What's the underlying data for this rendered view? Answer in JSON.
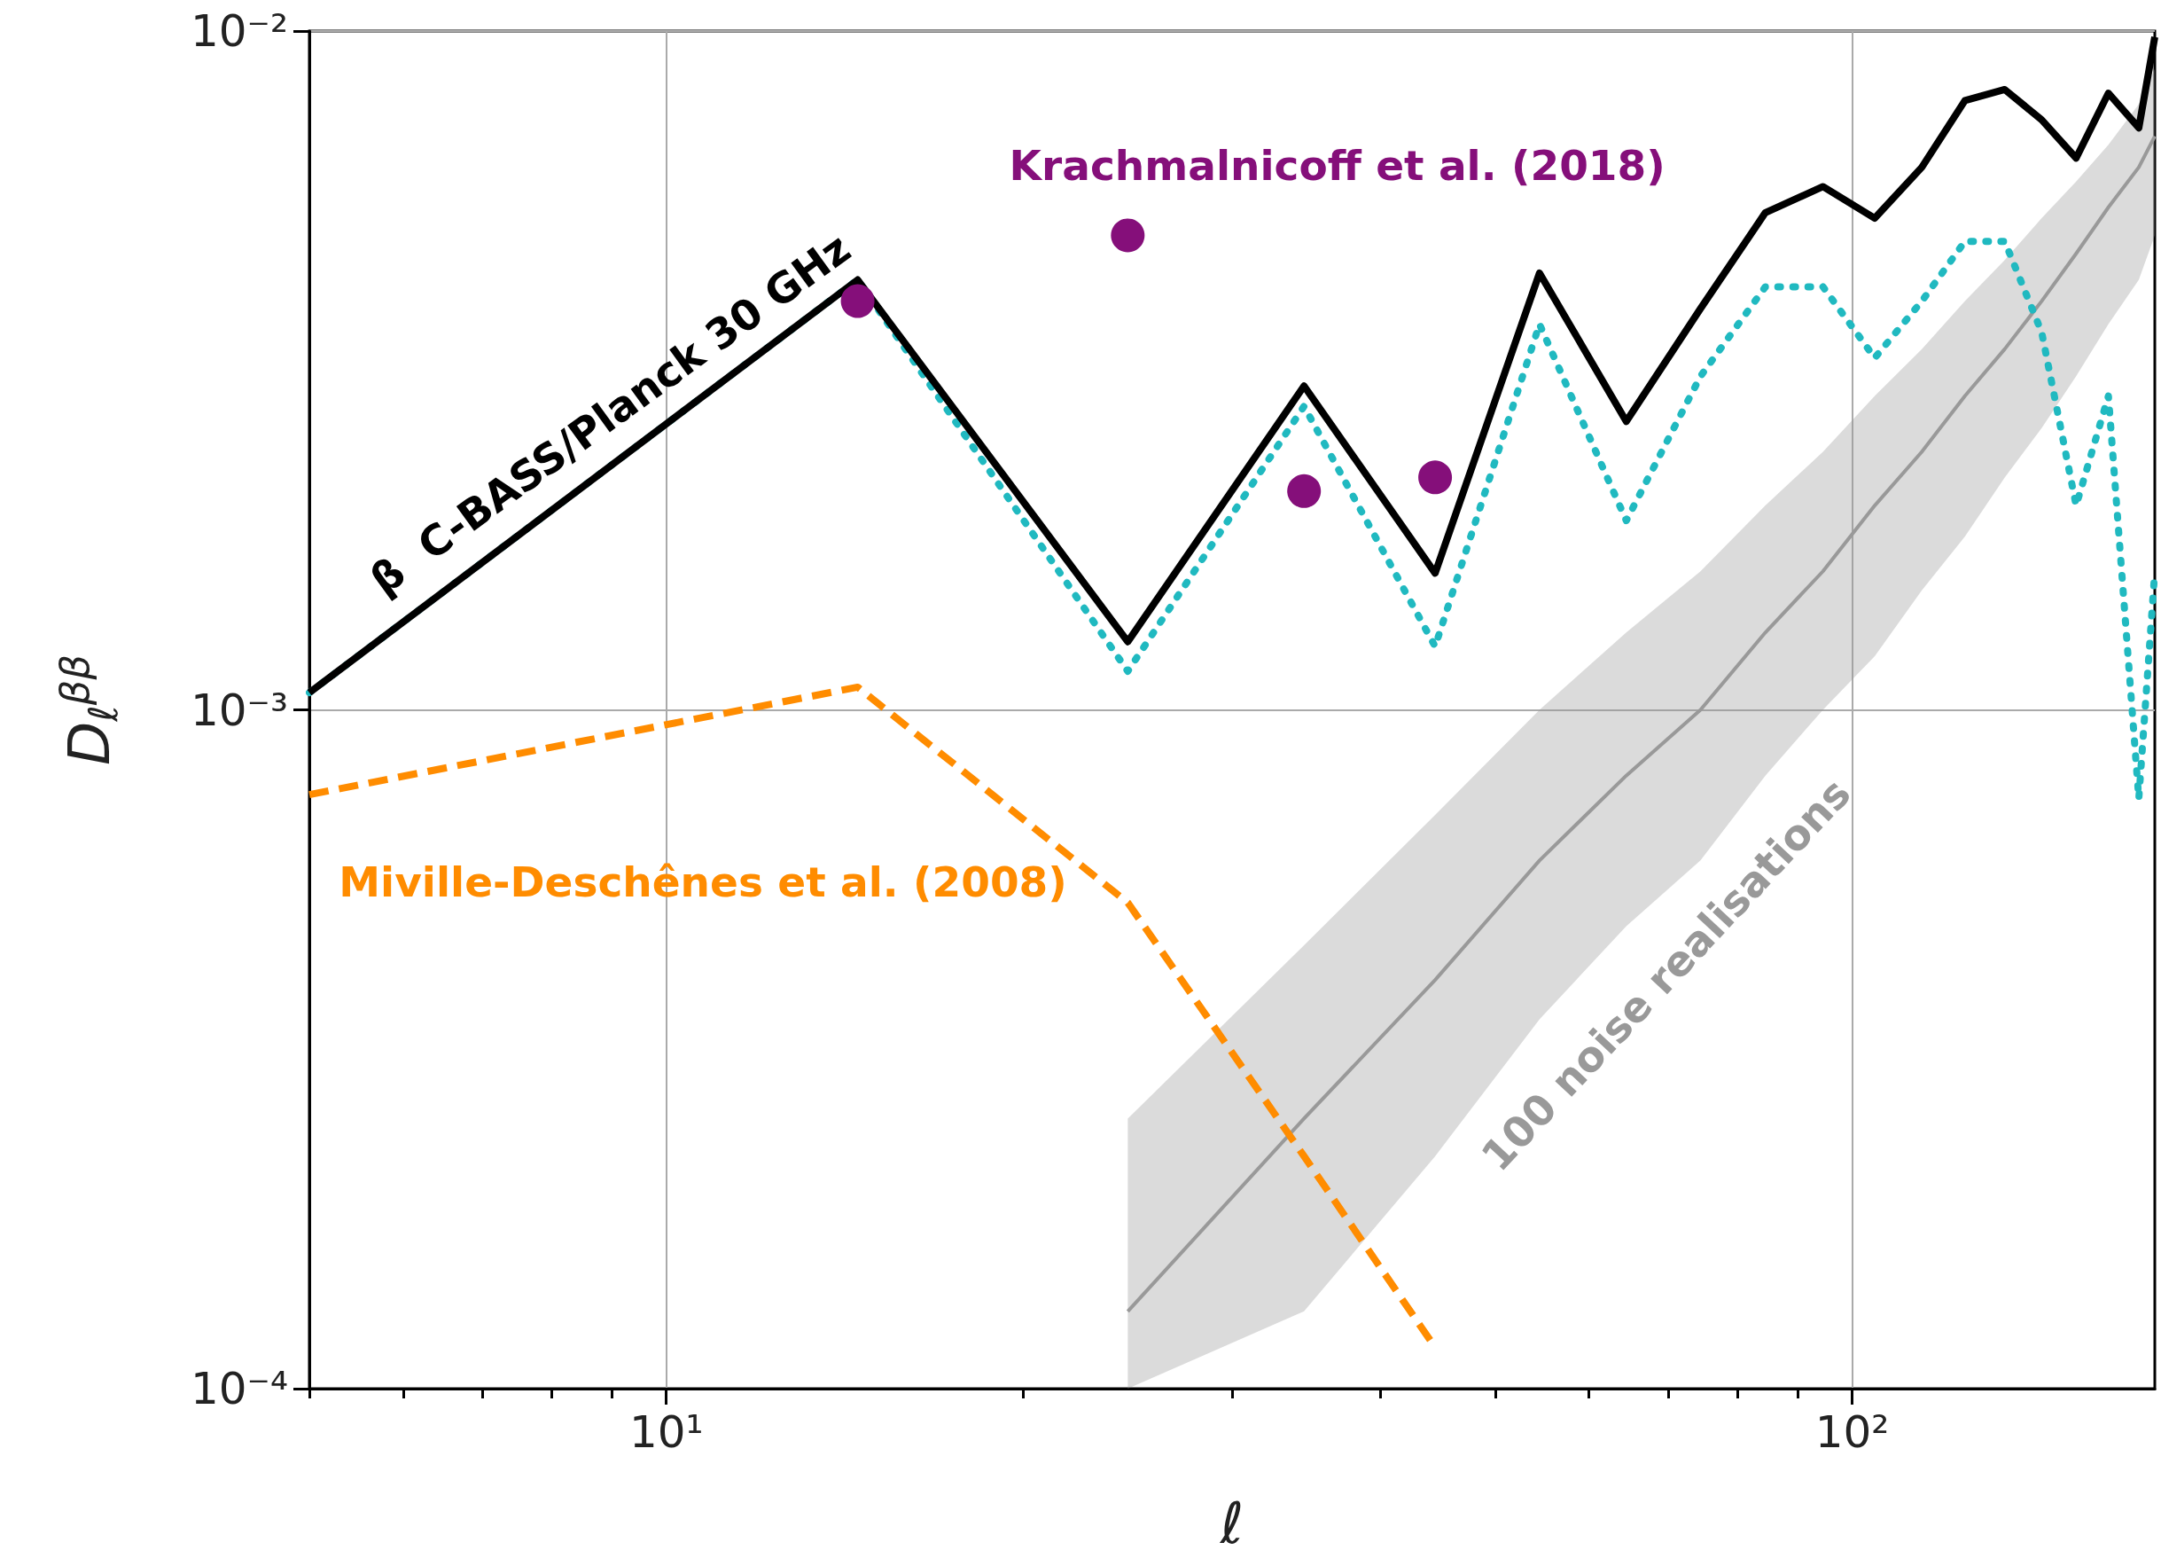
{
  "chart_data": {
    "type": "line",
    "xlabel": "ℓ",
    "ylabel": "D$_{ℓ}$$^{ββ}$",
    "log": "xy",
    "grid": true,
    "marker": "none",
    "xlim": [
      5,
      180
    ],
    "ylim": [
      0.0001,
      0.01
    ],
    "xticks": [
      {
        "value": 5,
        "label": null
      },
      {
        "value": 6,
        "label": null
      },
      {
        "value": 7,
        "label": null
      },
      {
        "value": 8,
        "label": null
      },
      {
        "value": 9,
        "label": null
      },
      {
        "value": 10,
        "label": "10¹"
      },
      {
        "value": 20,
        "label": null
      },
      {
        "value": 30,
        "label": null
      },
      {
        "value": 40,
        "label": null
      },
      {
        "value": 50,
        "label": null
      },
      {
        "value": 60,
        "label": null
      },
      {
        "value": 70,
        "label": null
      },
      {
        "value": 80,
        "label": null
      },
      {
        "value": 90,
        "label": null
      },
      {
        "value": 100,
        "label": "10²"
      }
    ],
    "yticks": [
      {
        "value": 0.0001,
        "label": "10⁻⁴"
      },
      {
        "value": 0.001,
        "label": "10⁻³"
      },
      {
        "value": 0.01,
        "label": "10⁻²"
      }
    ],
    "series": [
      {
        "name": "100 noise realisations",
        "color": "#999999",
        "line_style": "solid",
        "x": [
          24.5,
          34.5,
          44.5,
          54.5,
          64.5,
          74.5,
          84.5,
          94.5,
          104.5,
          114.5,
          124.5,
          134.5,
          144.5,
          154.5,
          164.5,
          174.5,
          180
        ],
        "values": [
          0.00013,
          0.00025,
          0.0004,
          0.0006,
          0.0008,
          0.001,
          0.0013,
          0.0016,
          0.002,
          0.0024,
          0.0029,
          0.0034,
          0.004,
          0.0047,
          0.0055,
          0.0063,
          0.007
        ],
        "lower": [
          0.0001,
          0.00013,
          0.00022,
          0.00035,
          0.00048,
          0.0006,
          0.0008,
          0.001,
          0.0012,
          0.0015,
          0.0018,
          0.0022,
          0.0026,
          0.0031,
          0.0037,
          0.0043,
          0.005
        ],
        "upper": [
          0.00025,
          0.00045,
          0.0007,
          0.001,
          0.0013,
          0.0016,
          0.002,
          0.0024,
          0.0029,
          0.0034,
          0.004,
          0.0046,
          0.0053,
          0.006,
          0.0068,
          0.0078,
          0.0088
        ]
      },
      {
        "name": "Miville-Deschênes et al. (2008)",
        "color": "#ff8c00",
        "line_style": "dashed",
        "x": [
          5,
          14.5,
          24.5,
          34.5,
          44.5
        ],
        "values": [
          0.00075,
          0.00108,
          0.00052,
          0.00022,
          0.000115
        ]
      },
      {
        "color": "#20b9c0",
        "line_style": "dotted",
        "x": [
          5,
          14.5,
          24.5,
          34.5,
          44.5,
          54.5,
          64.5,
          74.5,
          84.5,
          94.5,
          104.5,
          114.5,
          124.5,
          134.5,
          144.5,
          154.5,
          164.5,
          174.5,
          180
        ],
        "values": [
          0.00106,
          0.0043,
          0.00114,
          0.0028,
          0.00124,
          0.0037,
          0.0019,
          0.0031,
          0.0042,
          0.0042,
          0.0033,
          0.004,
          0.0049,
          0.0049,
          0.0036,
          0.002,
          0.0029,
          0.00074,
          0.0016
        ]
      },
      {
        "name": "β  C-BASS/Planck 30 GHz",
        "color": "#000000",
        "line_style": "solid",
        "x": [
          5,
          14.5,
          24.5,
          34.5,
          44.5,
          54.5,
          64.5,
          74.5,
          84.5,
          94.5,
          104.5,
          114.5,
          124.5,
          134.5,
          144.5,
          154.5,
          164.5,
          174.5,
          180
        ],
        "values": [
          0.00106,
          0.0043,
          0.00126,
          0.003,
          0.00159,
          0.0044,
          0.00266,
          0.0039,
          0.0054,
          0.0059,
          0.0053,
          0.0063,
          0.0079,
          0.0082,
          0.0074,
          0.0065,
          0.0081,
          0.0072,
          0.0098
        ]
      },
      {
        "name": "Krachmalnicoff et al. (2018)",
        "type": "scatter",
        "marker": "circle",
        "color": "#850f7a",
        "x": [
          14.5,
          24.5,
          34.5,
          44.5
        ],
        "values": [
          0.004,
          0.005,
          0.0021,
          0.0022
        ]
      }
    ]
  }
}
